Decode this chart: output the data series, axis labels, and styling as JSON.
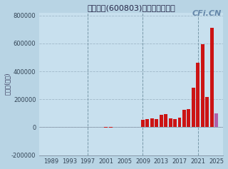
{
  "title": "新奥股份(600803)净利润（万元）",
  "ylabel": "净利润(万元)",
  "background_color": "#b8d4e4",
  "plot_bg_color": "#c8e0ee",
  "grid_color": "#a0b8c8",
  "bar_color_red": "#cc1414",
  "bar_color_purple": "#b060a8",
  "watermark": "CFi.CN",
  "years": [
    1989,
    1990,
    1991,
    1992,
    1993,
    1994,
    1995,
    1996,
    1997,
    1998,
    1999,
    2000,
    2001,
    2002,
    2003,
    2004,
    2005,
    2006,
    2007,
    2008,
    2009,
    2010,
    2011,
    2012,
    2013,
    2014,
    2015,
    2016,
    2017,
    2018,
    2019,
    2020,
    2021,
    2022,
    2023,
    2024,
    2025
  ],
  "values": [
    500,
    600,
    700,
    800,
    1000,
    1200,
    1500,
    2000,
    2500,
    3000,
    2000,
    1500,
    -5000,
    -3000,
    2000,
    3000,
    2500,
    3000,
    4000,
    2000,
    55000,
    58000,
    62000,
    56000,
    90000,
    95000,
    62000,
    57000,
    68000,
    122000,
    132000,
    282000,
    462000,
    592000,
    218000,
    712000,
    98000
  ],
  "ylim": [
    -200000,
    820000
  ],
  "yticks": [
    -200000,
    0,
    200000,
    400000,
    600000,
    800000
  ],
  "xtick_years": [
    1989,
    1993,
    1997,
    2001,
    2005,
    2009,
    2013,
    2017,
    2021,
    2025
  ],
  "vline_years": [
    1997,
    2009,
    2021
  ],
  "title_fontsize": 8,
  "axis_fontsize": 6,
  "watermark_fontsize": 8
}
